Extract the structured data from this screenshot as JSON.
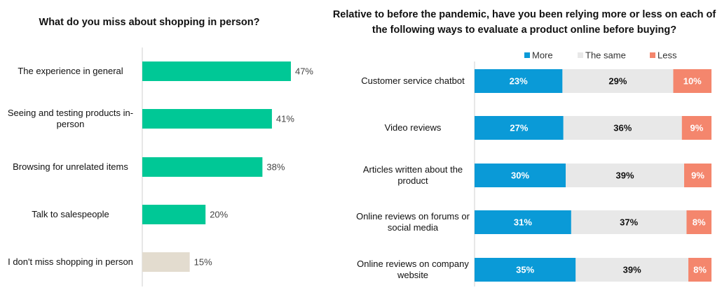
{
  "chart_data": [
    {
      "type": "bar",
      "orientation": "horizontal",
      "title": "What do you miss about shopping in person?",
      "categories": [
        "The experience in general",
        "Seeing and testing products in-person",
        "Browsing for unrelated items",
        "Talk to salespeople",
        "I don't miss shopping in person"
      ],
      "values": [
        47,
        41,
        38,
        20,
        15
      ],
      "value_labels": [
        "47%",
        "41%",
        "38%",
        "20%",
        "15%"
      ],
      "colors": [
        "#00c896",
        "#00c896",
        "#00c896",
        "#00c896",
        "#e3dccf"
      ]
    },
    {
      "type": "stacked-bar",
      "orientation": "horizontal",
      "title": "Relative to before the pandemic, have you been relying more or less on each of the following ways to evaluate a product online before buying?",
      "categories": [
        "Customer service chatbot",
        "Video reviews",
        "Articles written about the product",
        "Online reviews on forums or social media",
        "Online reviews on company website"
      ],
      "series": [
        {
          "name": "More",
          "color": "#0a9ad7",
          "label_color": "#ffffff",
          "values": [
            23,
            27,
            30,
            31,
            35
          ],
          "value_labels": [
            "23%",
            "27%",
            "30%",
            "31%",
            "35%"
          ]
        },
        {
          "name": "The same",
          "color": "#e8e8e8",
          "label_color": "#111111",
          "values": [
            29,
            36,
            39,
            37,
            39
          ],
          "value_labels": [
            "29%",
            "36%",
            "39%",
            "37%",
            "39%"
          ]
        },
        {
          "name": "Less",
          "color": "#f4866d",
          "label_color": "#ffffff",
          "values": [
            10,
            9,
            9,
            8,
            8
          ],
          "value_labels": [
            "10%",
            "9%",
            "9%",
            "8%",
            "8%"
          ]
        }
      ],
      "legend": "top"
    }
  ]
}
